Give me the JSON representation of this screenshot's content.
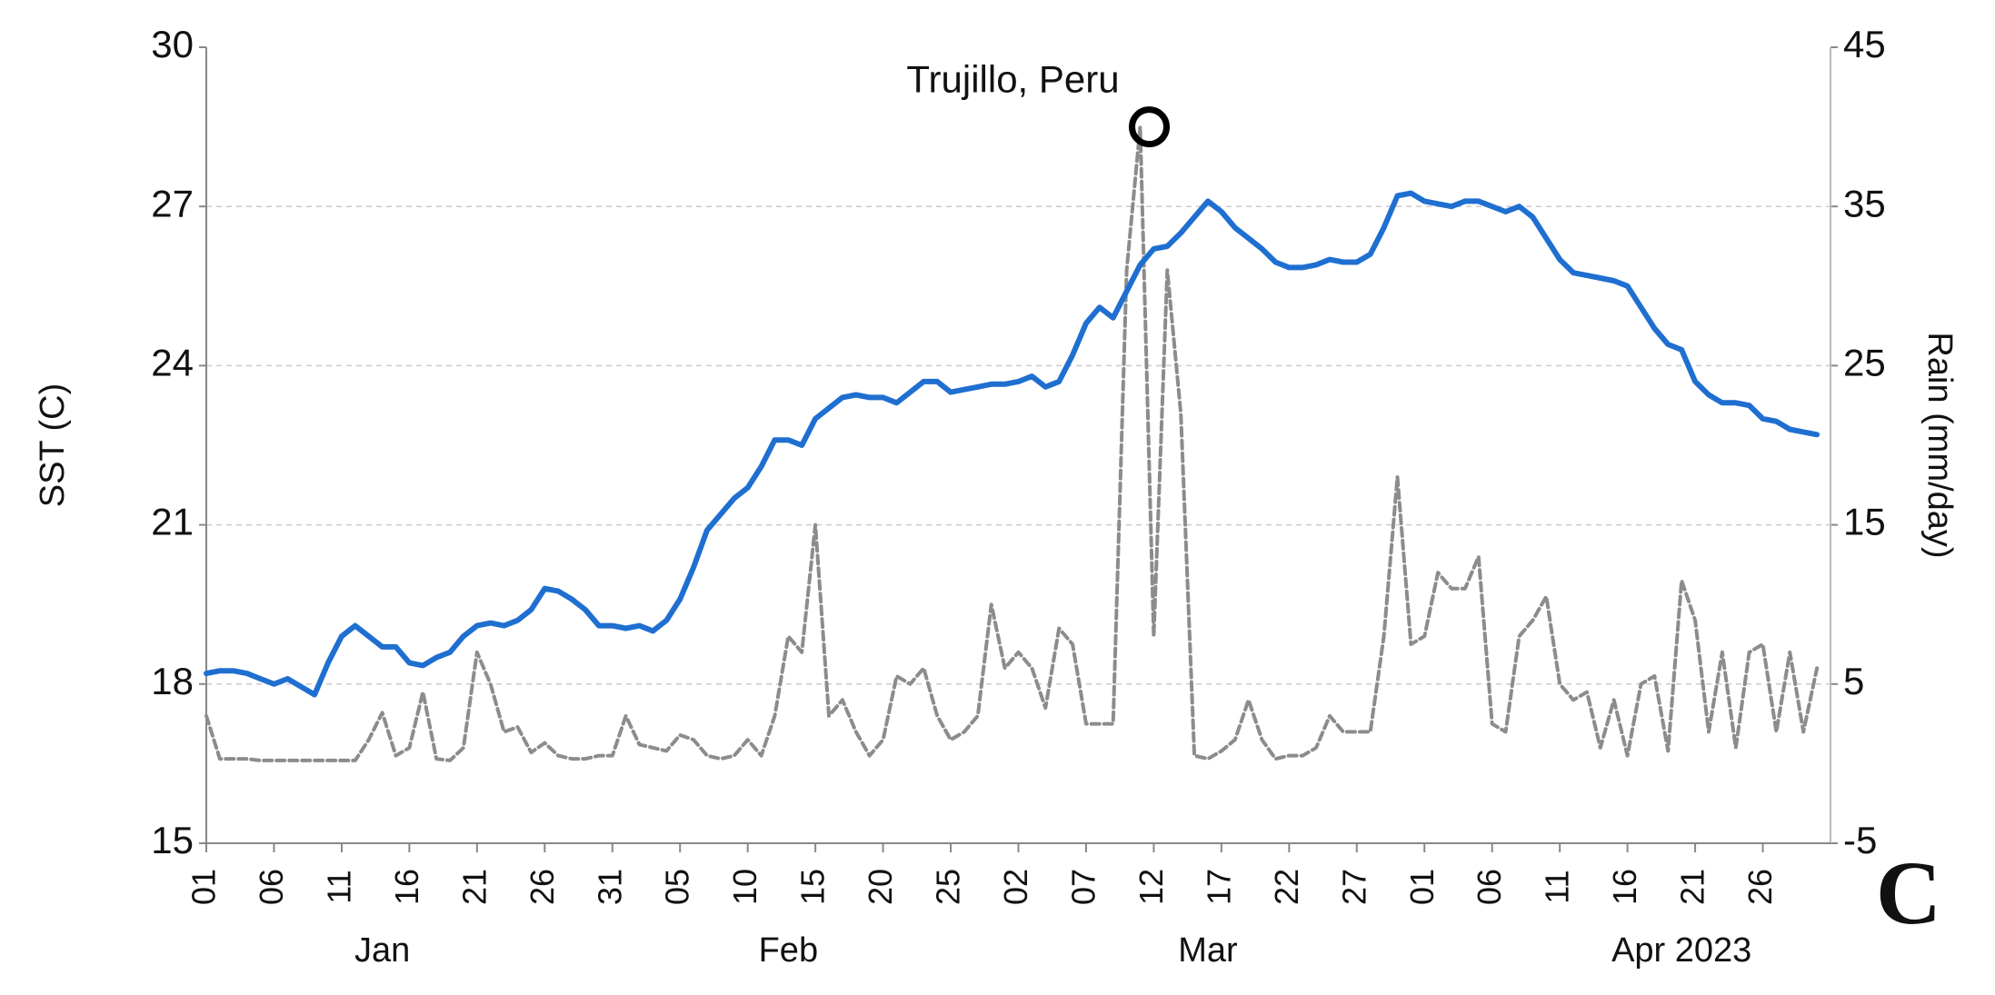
{
  "chart_data": {
    "type": "line",
    "ylabel": "SST (C)",
    "y2label": "Rain (mm/day)",
    "panel_label": "C",
    "x": [
      "2023-01-01",
      "2023-01-02",
      "2023-01-03",
      "2023-01-04",
      "2023-01-05",
      "2023-01-06",
      "2023-01-07",
      "2023-01-08",
      "2023-01-09",
      "2023-01-10",
      "2023-01-11",
      "2023-01-12",
      "2023-01-13",
      "2023-01-14",
      "2023-01-15",
      "2023-01-16",
      "2023-01-17",
      "2023-01-18",
      "2023-01-19",
      "2023-01-20",
      "2023-01-21",
      "2023-01-22",
      "2023-01-23",
      "2023-01-24",
      "2023-01-25",
      "2023-01-26",
      "2023-01-27",
      "2023-01-28",
      "2023-01-29",
      "2023-01-30",
      "2023-01-31",
      "2023-02-01",
      "2023-02-02",
      "2023-02-03",
      "2023-02-04",
      "2023-02-05",
      "2023-02-06",
      "2023-02-07",
      "2023-02-08",
      "2023-02-09",
      "2023-02-10",
      "2023-02-11",
      "2023-02-12",
      "2023-02-13",
      "2023-02-14",
      "2023-02-15",
      "2023-02-16",
      "2023-02-17",
      "2023-02-18",
      "2023-02-19",
      "2023-02-20",
      "2023-02-21",
      "2023-02-22",
      "2023-02-23",
      "2023-02-24",
      "2023-02-25",
      "2023-02-26",
      "2023-02-27",
      "2023-02-28",
      "2023-03-01",
      "2023-03-02",
      "2023-03-03",
      "2023-03-04",
      "2023-03-05",
      "2023-03-06",
      "2023-03-07",
      "2023-03-08",
      "2023-03-09",
      "2023-03-10",
      "2023-03-11",
      "2023-03-12",
      "2023-03-13",
      "2023-03-14",
      "2023-03-15",
      "2023-03-16",
      "2023-03-17",
      "2023-03-18",
      "2023-03-19",
      "2023-03-20",
      "2023-03-21",
      "2023-03-22",
      "2023-03-23",
      "2023-03-24",
      "2023-03-25",
      "2023-03-26",
      "2023-03-27",
      "2023-03-28",
      "2023-03-29",
      "2023-03-30",
      "2023-03-31",
      "2023-04-01",
      "2023-04-02",
      "2023-04-03",
      "2023-04-04",
      "2023-04-05",
      "2023-04-06",
      "2023-04-07",
      "2023-04-08",
      "2023-04-09",
      "2023-04-10",
      "2023-04-11",
      "2023-04-12",
      "2023-04-13",
      "2023-04-14",
      "2023-04-15",
      "2023-04-16",
      "2023-04-17",
      "2023-04-18",
      "2023-04-19",
      "2023-04-20",
      "2023-04-21",
      "2023-04-22",
      "2023-04-23",
      "2023-04-24",
      "2023-04-25",
      "2023-04-26",
      "2023-04-27",
      "2023-04-28",
      "2023-04-29",
      "2023-04-30"
    ],
    "series": [
      {
        "color": "#1f6fd1",
        "axis": "y",
        "values": [
          18.2,
          18.25,
          18.25,
          18.2,
          18.1,
          18.0,
          18.1,
          17.95,
          17.8,
          18.4,
          18.9,
          19.1,
          18.9,
          18.7,
          18.7,
          18.4,
          18.35,
          18.5,
          18.6,
          18.9,
          19.1,
          19.15,
          19.1,
          19.2,
          19.4,
          19.8,
          19.75,
          19.6,
          19.4,
          19.1,
          19.1,
          19.05,
          19.1,
          19.0,
          19.2,
          19.6,
          20.2,
          20.9,
          21.2,
          21.5,
          21.7,
          22.1,
          22.6,
          22.6,
          22.5,
          23.0,
          23.2,
          23.4,
          23.45,
          23.4,
          23.4,
          23.3,
          23.5,
          23.7,
          23.7,
          23.5,
          23.55,
          23.6,
          23.65,
          23.65,
          23.7,
          23.8,
          23.6,
          23.7,
          24.2,
          24.8,
          25.1,
          24.9,
          25.4,
          25.9,
          26.2,
          26.25,
          26.5,
          26.8,
          27.1,
          26.9,
          26.6,
          26.4,
          26.2,
          25.95,
          25.85,
          25.85,
          25.9,
          26.0,
          25.95,
          25.95,
          26.1,
          26.6,
          27.2,
          27.25,
          27.1,
          27.05,
          27.0,
          27.1,
          27.1,
          27.0,
          26.9,
          27.0,
          26.8,
          26.4,
          26.0,
          25.75,
          25.7,
          25.65,
          25.6,
          25.5,
          25.1,
          24.7,
          24.4,
          24.3,
          23.7,
          23.45,
          23.3,
          23.3,
          23.25,
          23.0,
          22.95,
          22.8,
          22.75,
          22.7
        ]
      },
      {
        "color": "#8c8c8c",
        "axis": "y2",
        "dashed": true,
        "values": [
          3,
          0.3,
          0.3,
          0.3,
          0.2,
          0.2,
          0.2,
          0.2,
          0.2,
          0.2,
          0.2,
          0.2,
          1.5,
          3.2,
          0.5,
          1,
          4.5,
          0.3,
          0.2,
          1,
          7,
          5,
          2,
          2.3,
          0.7,
          1.3,
          0.5,
          0.3,
          0.3,
          0.5,
          0.5,
          3,
          1.2,
          1,
          0.8,
          1.8,
          1.5,
          0.5,
          0.3,
          0.5,
          1.5,
          0.5,
          3,
          8,
          7,
          15,
          3,
          4,
          2,
          0.5,
          1.5,
          5.5,
          5,
          6,
          3,
          1.5,
          2,
          3,
          10,
          6,
          7,
          6,
          3.5,
          8.5,
          7.5,
          2.5,
          2.5,
          2.5,
          31,
          40,
          8,
          31,
          22,
          0.5,
          0.3,
          0.8,
          1.5,
          4,
          1.5,
          0.3,
          0.5,
          0.5,
          1,
          3,
          2,
          2,
          2,
          8,
          18,
          7.5,
          8,
          12,
          11,
          11,
          13,
          2.5,
          2,
          8,
          9,
          10.5,
          5,
          4,
          4.5,
          1,
          4,
          0.5,
          5,
          5.5,
          0.8,
          11.5,
          9,
          2,
          7,
          1,
          7,
          7.5,
          2,
          7,
          2,
          6
        ]
      }
    ],
    "xlim": [
      "2023-01-01",
      "2023-05-01"
    ],
    "xticks": [
      {
        "value": "2023-01-01",
        "label": "01"
      },
      {
        "value": "2023-01-06",
        "label": "06"
      },
      {
        "value": "2023-01-11",
        "label": "11"
      },
      {
        "value": "2023-01-16",
        "label": "16"
      },
      {
        "value": "2023-01-21",
        "label": "21"
      },
      {
        "value": "2023-01-26",
        "label": "26"
      },
      {
        "value": "2023-01-31",
        "label": "31"
      },
      {
        "value": "2023-02-05",
        "label": "05"
      },
      {
        "value": "2023-02-10",
        "label": "10"
      },
      {
        "value": "2023-02-15",
        "label": "15"
      },
      {
        "value": "2023-02-20",
        "label": "20"
      },
      {
        "value": "2023-02-25",
        "label": "25"
      },
      {
        "value": "2023-03-02",
        "label": "02"
      },
      {
        "value": "2023-03-07",
        "label": "07"
      },
      {
        "value": "2023-03-12",
        "label": "12"
      },
      {
        "value": "2023-03-17",
        "label": "17"
      },
      {
        "value": "2023-03-22",
        "label": "22"
      },
      {
        "value": "2023-03-27",
        "label": "27"
      },
      {
        "value": "2023-04-01",
        "label": "01"
      },
      {
        "value": "2023-04-06",
        "label": "06"
      },
      {
        "value": "2023-04-11",
        "label": "11"
      },
      {
        "value": "2023-04-16",
        "label": "16"
      },
      {
        "value": "2023-04-21",
        "label": "21"
      },
      {
        "value": "2023-04-26",
        "label": "26"
      }
    ],
    "month_labels": [
      {
        "value": "2023-01-14",
        "label": "Jan"
      },
      {
        "value": "2023-02-13",
        "label": "Feb"
      },
      {
        "value": "2023-03-16",
        "label": "Mar"
      },
      {
        "value": "2023-04-20",
        "label": "Apr 2023"
      }
    ],
    "ylim": [
      15,
      30
    ],
    "yticks": [
      15,
      18,
      21,
      24,
      27,
      30
    ],
    "y2lim": [
      -5,
      45
    ],
    "y2ticks": [
      -5,
      5,
      15,
      25,
      35,
      45
    ],
    "grid": true,
    "annotations": [
      {
        "text": "Trujillo, Peru",
        "x": "2023-03-11",
        "y": 40,
        "axis": "y2"
      }
    ]
  }
}
